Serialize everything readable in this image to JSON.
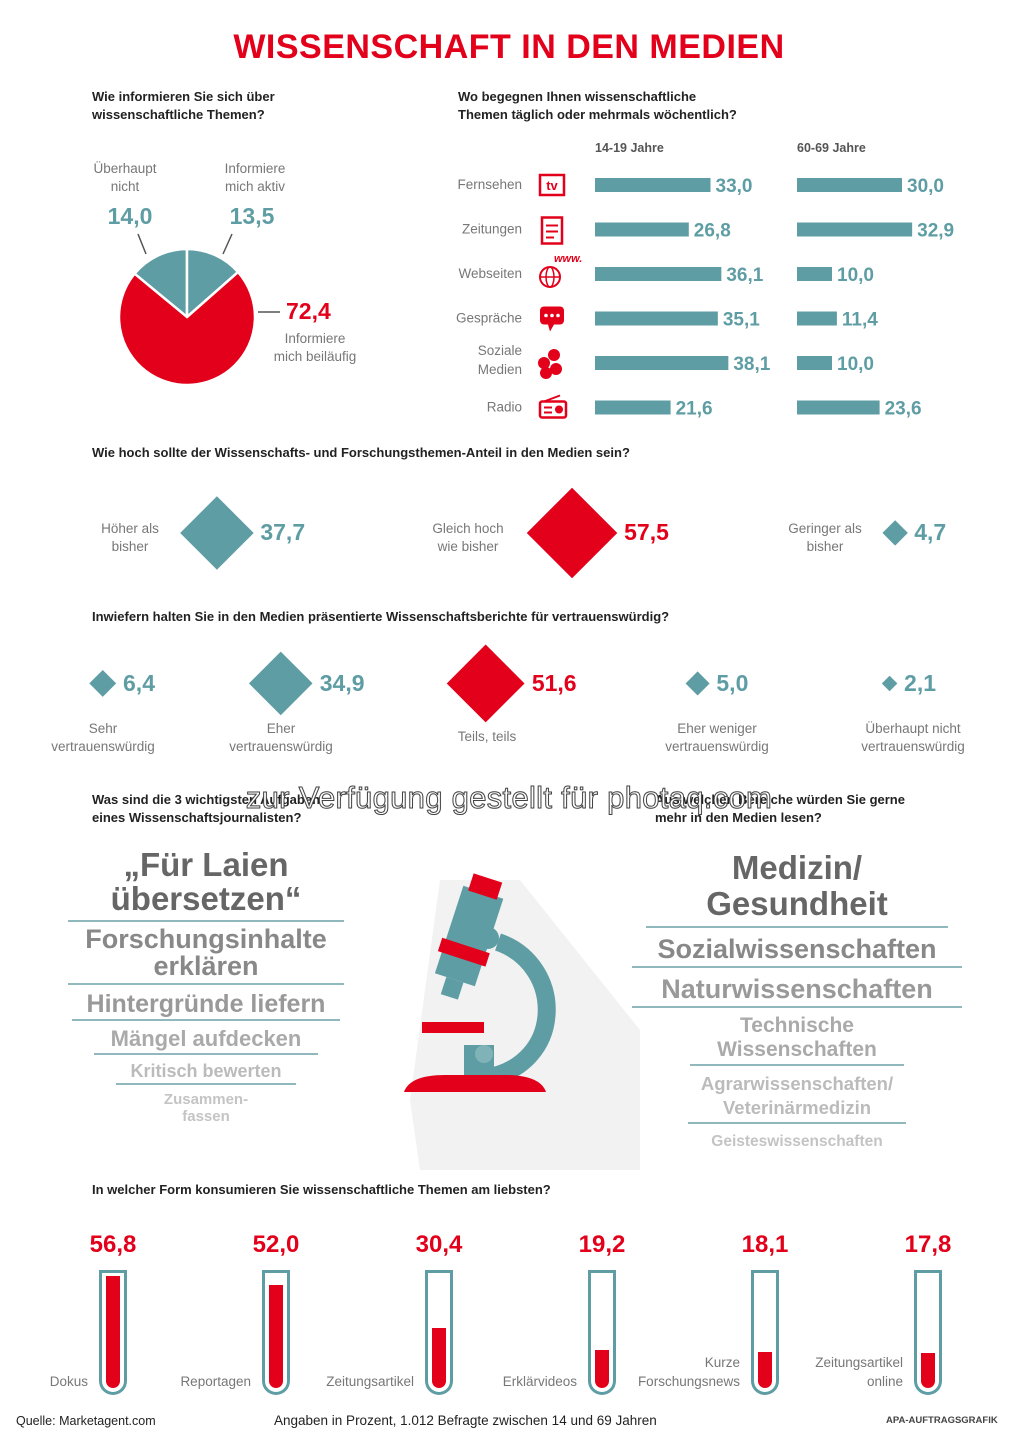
{
  "title": "WISSENSCHAFT IN DEN MEDIEN",
  "colors": {
    "teal": "#5e9da4",
    "red": "#e2001a",
    "gray": "#777777"
  },
  "watermark": "zur Verfügung gestellt für photaq.com",
  "chart_data": [
    {
      "type": "pie",
      "title": "Wie informieren Sie sich über wissenschaftliche Themen?",
      "slices": [
        {
          "label": "Überhaupt nicht",
          "value": 14.0,
          "display": "14,0",
          "color": "#5e9da4"
        },
        {
          "label": "Informiere mich aktiv",
          "value": 13.5,
          "display": "13,5",
          "color": "#5e9da4"
        },
        {
          "label": "Informiere mich beiläufig",
          "value": 72.4,
          "display": "72,4",
          "color": "#e2001a"
        }
      ]
    },
    {
      "type": "bar",
      "title": "Wo begegnen Ihnen wissenschaftliche Themen täglich oder mehrmals wöchentlich?",
      "categories": [
        "Fernsehen",
        "Zeitungen",
        "Webseiten",
        "Gespräche",
        "Soziale Medien",
        "Radio"
      ],
      "icons": [
        "tv-icon",
        "newspaper-icon",
        "web-icon",
        "speech-bubble-icon",
        "social-media-icon",
        "radio-icon"
      ],
      "series": [
        {
          "name": "14-19 Jahre",
          "values": [
            33.0,
            26.8,
            36.1,
            35.1,
            38.1,
            21.6
          ],
          "display": [
            "33,0",
            "26,8",
            "36,1",
            "35,1",
            "38,1",
            "21,6"
          ]
        },
        {
          "name": "60-69 Jahre",
          "values": [
            30.0,
            32.9,
            10.0,
            11.4,
            10.0,
            23.6
          ],
          "display": [
            "30,0",
            "32,9",
            "10,0",
            "11,4",
            "10,0",
            "23,6"
          ]
        }
      ],
      "www_label": "www."
    },
    {
      "type": "scatter",
      "title": "Wie hoch sollte der Wissenschafts- und Forschungsthemen-Anteil in den Medien sein?",
      "items": [
        {
          "label": "Höher als bisher",
          "value": 37.7,
          "display": "37,7",
          "color": "#5e9da4"
        },
        {
          "label": "Gleich hoch wie bisher",
          "value": 57.5,
          "display": "57,5",
          "color": "#e2001a"
        },
        {
          "label": "Geringer als bisher",
          "value": 4.7,
          "display": "4,7",
          "color": "#5e9da4"
        }
      ]
    },
    {
      "type": "scatter",
      "title": "Inwiefern halten Sie in den Medien präsentierte Wissenschaftsberichte für vertrauenswürdig?",
      "items": [
        {
          "label": "Sehr vertrauenswürdig",
          "value": 6.4,
          "display": "6,4",
          "color": "#5e9da4"
        },
        {
          "label": "Eher vertrauenswürdig",
          "value": 34.9,
          "display": "34,9",
          "color": "#5e9da4"
        },
        {
          "label": "Teils, teils",
          "value": 51.6,
          "display": "51,6",
          "color": "#e2001a"
        },
        {
          "label": "Eher weniger vertrauenswürdig",
          "value": 5.0,
          "display": "5,0",
          "color": "#5e9da4"
        },
        {
          "label": "Überhaupt nicht vertrauenswürdig",
          "value": 2.1,
          "display": "2,1",
          "color": "#5e9da4"
        }
      ]
    },
    {
      "type": "bar",
      "title": "In welcher Form konsumieren Sie wissenschaftliche Themen am liebsten?",
      "categories": [
        "Dokus",
        "Reportagen",
        "Zeitungsartikel",
        "Erklärvideos",
        "Kurze Forschungsnews",
        "Zeitungsartikel online"
      ],
      "values": [
        56.8,
        52.0,
        30.4,
        19.2,
        18.1,
        17.8
      ],
      "display": [
        "56,8",
        "52,0",
        "30,4",
        "19,2",
        "18,1",
        "17,8"
      ]
    }
  ],
  "labels": {
    "pie_q": [
      "Wie informieren Sie sich über",
      "wissenschaftliche Themen?"
    ],
    "pie_l1": [
      "Überhaupt",
      "nicht"
    ],
    "pie_l2": [
      "Informiere",
      "mich aktiv"
    ],
    "pie_l3": [
      "Informiere",
      "mich beiläufig"
    ],
    "bars_q": [
      "Wo begegnen Ihnen wissenschaftliche",
      "Themen täglich oder mehrmals wöchentlich?"
    ],
    "cat_soziale": [
      "Soziale",
      "Medien"
    ],
    "diam1_l": [
      [
        "Höher als",
        "bisher"
      ],
      [
        "Gleich hoch",
        "wie bisher"
      ],
      [
        "Geringer als",
        "bisher"
      ]
    ],
    "diam2_l": [
      [
        "Sehr",
        "vertrauenswürdig"
      ],
      [
        "Eher",
        "vertrauenswürdig"
      ],
      [
        "Teils, teils",
        ""
      ],
      [
        "Eher weniger",
        "vertrauenswürdig"
      ],
      [
        "Überhaupt nicht",
        "vertrauenswürdig"
      ]
    ],
    "tube_l": [
      [
        "",
        "Dokus"
      ],
      [
        "",
        "Reportagen"
      ],
      [
        "",
        "Zeitungsartikel"
      ],
      [
        "",
        "Erklärvideos"
      ],
      [
        "Kurze",
        "Forschungsnews"
      ],
      [
        "Zeitungsartikel",
        "online"
      ]
    ]
  },
  "words": {
    "q_left": [
      "Was sind die 3 wichtigsten Aufgaben",
      "eines Wissenschaftsjournalisten?"
    ],
    "q_right": [
      "Aus welchen Bereiche würden Sie gerne",
      "mehr in den Medien lesen?"
    ],
    "left": [
      [
        "„Für Laien",
        "übersetzen“"
      ],
      [
        "Forschungsinhalte",
        "erklären"
      ],
      [
        "Hintergründe liefern"
      ],
      [
        "Mängel aufdecken"
      ],
      [
        "Kritisch bewerten"
      ],
      [
        "Zusammen-",
        "fassen"
      ]
    ],
    "right": [
      [
        "Medizin/",
        "Gesundheit"
      ],
      [
        "Sozialwissenschaften"
      ],
      [
        "Naturwissenschaften"
      ],
      [
        "Technische",
        "Wissenschaften"
      ],
      [
        "Agrarwissenschaften/",
        "Veterinärmedizin"
      ],
      [
        "Geisteswissenschaften"
      ]
    ]
  },
  "footer": {
    "source": "Quelle: Marketagent.com",
    "note": "Angaben in Prozent, 1.012 Befragte zwischen 14 und 69 Jahren",
    "credit": "APA-AUFTRAGSGRAFIK"
  }
}
